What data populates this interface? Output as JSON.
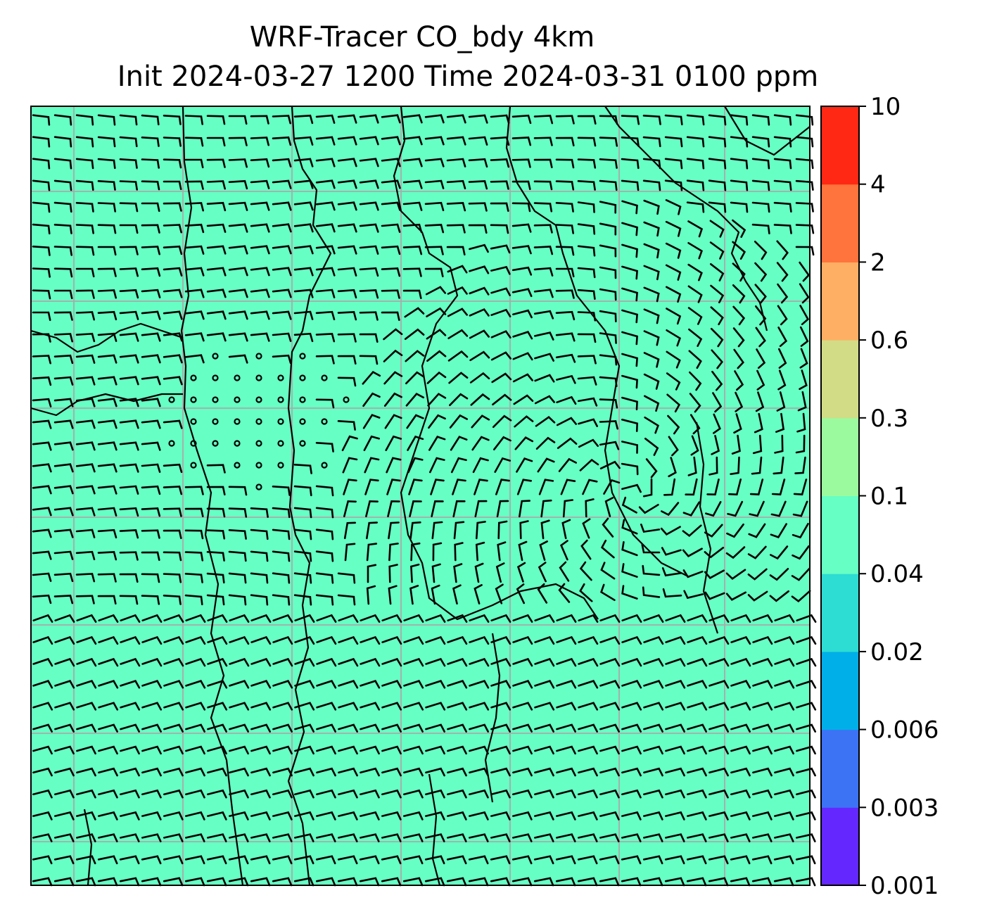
{
  "title": {
    "line1": "WRF-Tracer CO_bdy 4km",
    "line2": "Init 2024-03-27 1200 Time 2024-03-31 0100 ppm"
  },
  "map": {
    "field_fill_color": "#66ffc4",
    "field_value_class": "0.04 - 0.1",
    "gridline_color": "#aaaaaa",
    "coastline_color": "#000000",
    "overlay": "wind barbs"
  },
  "colorbar": {
    "levels": [
      {
        "label": "0.001",
        "color": "#6428ff"
      },
      {
        "label": "0.003",
        "color": "#3c73f5"
      },
      {
        "label": "0.006",
        "color": "#00afe8"
      },
      {
        "label": "0.02",
        "color": "#2ddcd2"
      },
      {
        "label": "0.04",
        "color": "#66ffc4"
      },
      {
        "label": "0.1",
        "color": "#9cfa9e"
      },
      {
        "label": "0.3",
        "color": "#d2dc86"
      },
      {
        "label": "0.6",
        "color": "#ffaf64"
      },
      {
        "label": "2",
        "color": "#ff733c"
      },
      {
        "label": "4",
        "color": "#ff2814"
      },
      {
        "label": "10",
        "color": ""
      }
    ]
  }
}
